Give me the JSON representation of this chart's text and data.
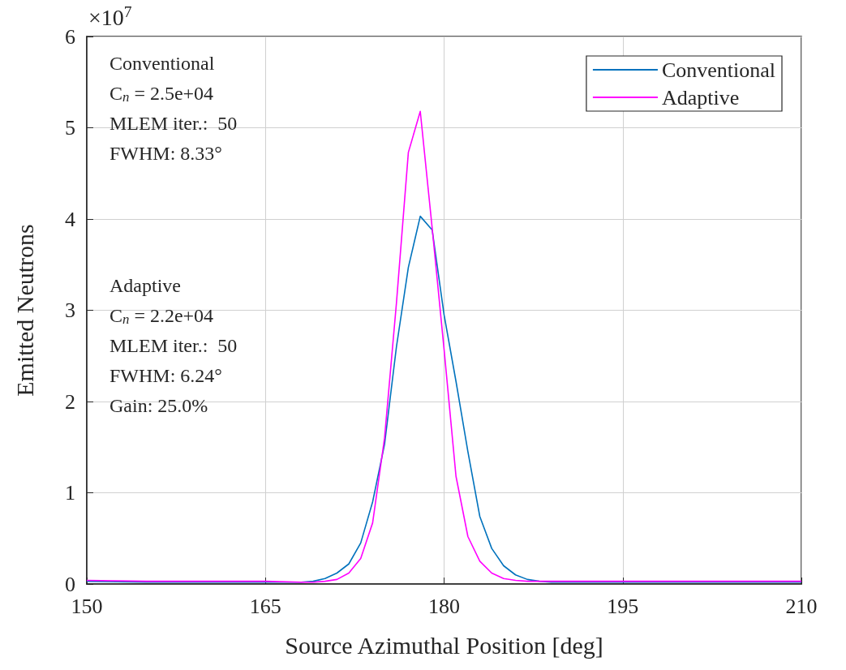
{
  "chart_data": {
    "type": "line",
    "xlabel": "Source Azimuthal Position [deg]",
    "ylabel": "Emitted Neutrons",
    "annotations": [
      "×10$^{7}$",
      "Conventional\nC$_{n}$ = 2.5e+04\nMLEM iter.:  50\nFWHM: 8.33°",
      "Adaptive\nC$_{n}$ = 2.2e+04\nMLEM iter.:  50\nFWHM: 6.24°\nGain: 25.0%"
    ],
    "series": [
      {
        "name": "Conventional",
        "color": "#0072bd",
        "x": [
          150,
          155,
          160,
          165,
          168,
          169,
          170,
          171,
          172,
          173,
          174,
          175,
          176,
          177,
          178,
          179,
          180,
          181,
          182,
          183,
          184,
          185,
          186,
          187,
          188,
          189,
          190,
          195,
          200,
          205,
          210
        ],
        "values": [
          0.03,
          0.02,
          0.02,
          0.02,
          0.02,
          0.03,
          0.06,
          0.12,
          0.22,
          0.45,
          0.9,
          1.53,
          2.6,
          3.47,
          4.03,
          3.88,
          2.95,
          2.22,
          1.45,
          0.74,
          0.39,
          0.2,
          0.1,
          0.05,
          0.03,
          0.02,
          0.02,
          0.02,
          0.02,
          0.02,
          0.02
        ]
      },
      {
        "name": "Adaptive",
        "color": "#ff00ff",
        "x": [
          150,
          155,
          160,
          165,
          168,
          169,
          170,
          171,
          172,
          173,
          174,
          175,
          176,
          177,
          178,
          179,
          180,
          181,
          182,
          183,
          184,
          185,
          186,
          187,
          188,
          190,
          195,
          200,
          205,
          210
        ],
        "values": [
          0.04,
          0.03,
          0.03,
          0.03,
          0.02,
          0.02,
          0.03,
          0.05,
          0.12,
          0.28,
          0.67,
          1.6,
          3.08,
          4.73,
          5.18,
          3.9,
          2.57,
          1.18,
          0.52,
          0.25,
          0.12,
          0.06,
          0.04,
          0.03,
          0.03,
          0.03,
          0.03,
          0.03,
          0.03,
          0.03
        ]
      }
    ],
    "xlim": [
      150,
      210
    ],
    "xticks": [
      150,
      165,
      180,
      195,
      210
    ],
    "ylim": [
      0,
      6
    ],
    "yticks": [
      0,
      1,
      2,
      3,
      4,
      5,
      6
    ],
    "grid": true,
    "legend": "top right",
    "marker": "none",
    "line_style": "solid"
  }
}
